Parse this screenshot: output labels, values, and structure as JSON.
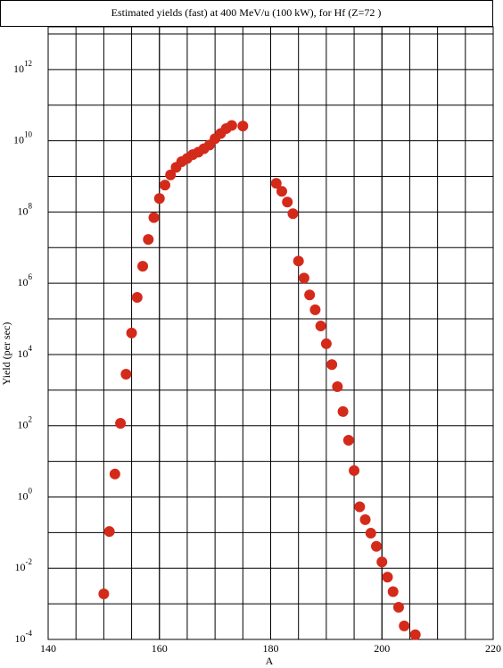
{
  "chart_data": {
    "type": "scatter",
    "title": "Estimated yields (fast) at 400 MeV/u (100 kW), for Hf (Z=72 )",
    "x_label": "A",
    "y_label": "Yield (per sec)",
    "log_y": true,
    "grid": true,
    "xlim": [
      140,
      220
    ],
    "ylim": [
      0.0001,
      10000000000000.0
    ],
    "xticks": [
      140,
      160,
      180,
      200,
      220
    ],
    "xgrid": [
      145,
      150,
      155,
      160,
      165,
      170,
      175,
      180,
      185,
      190,
      195,
      200,
      205,
      210,
      215
    ],
    "yticks": [
      {
        "value": 0.0001,
        "base": "10",
        "exponent": "-4"
      },
      {
        "value": 0.01,
        "base": "10",
        "exponent": "-2"
      },
      {
        "value": 1,
        "base": "10",
        "exponent": "0"
      },
      {
        "value": 100,
        "base": "10",
        "exponent": "2"
      },
      {
        "value": 10000,
        "base": "10",
        "exponent": "4"
      },
      {
        "value": 1000000,
        "base": "10",
        "exponent": "6"
      },
      {
        "value": 100000000,
        "base": "10",
        "exponent": "8"
      },
      {
        "value": 10000000000,
        "base": "10",
        "exponent": "10"
      },
      {
        "value": 1000000000000,
        "base": "10",
        "exponent": "12"
      }
    ],
    "ygrid": [
      0.001,
      0.1,
      10,
      1000,
      100000,
      10000000,
      1000000000,
      100000000000,
      10000000000000
    ],
    "color": "#d42a1a",
    "x": [
      150,
      151,
      152,
      153,
      154,
      155,
      156,
      157,
      158,
      159,
      160,
      161,
      162,
      163,
      164,
      165,
      166,
      167,
      168,
      169,
      170,
      171,
      172,
      173,
      175,
      181,
      182,
      183,
      184,
      185,
      186,
      187,
      188,
      189,
      190,
      191,
      192,
      193,
      194,
      195,
      196,
      197,
      198,
      199,
      200,
      201,
      202,
      203,
      204,
      206
    ],
    "values": [
      0.0019,
      0.107,
      4.4,
      117,
      2800,
      40000,
      400000,
      3000000,
      17000000,
      70000000,
      240000000,
      570000000,
      1100000000,
      1800000000,
      2600000000,
      3200000000,
      4100000000,
      4800000000,
      6000000000,
      7600000000,
      11500000000,
      16000000000,
      22000000000,
      27000000000,
      26000000000,
      640000000,
      380000000,
      190000000,
      90000000,
      4200000,
      1400000,
      470000,
      180000,
      63000,
      20000,
      5200,
      1250,
      250,
      39,
      5.5,
      0.53,
      0.23,
      0.096,
      0.041,
      0.015,
      0.0056,
      0.0022,
      0.0008,
      0.00024,
      0.000135
    ]
  }
}
